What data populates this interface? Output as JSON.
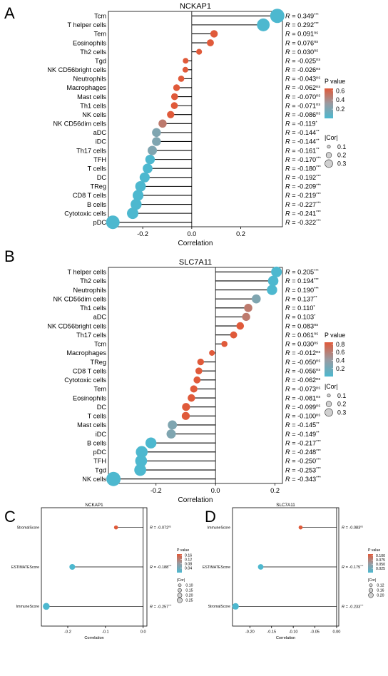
{
  "colors": {
    "high_p": "#e05a3a",
    "mid_p": "#9a9aa0",
    "low_p": "#4db8cf",
    "axis": "#000000"
  },
  "legend_labels": {
    "pvalue": "P value",
    "cor": "|Cor|"
  },
  "chart_data": [
    {
      "panel": "A",
      "type": "lollipop",
      "title": "NCKAP1",
      "xlabel": "Correlation",
      "xlim": [
        -0.34,
        0.37
      ],
      "xticks": [
        "-0.2",
        "0.0",
        "0.2"
      ],
      "xtick_values": [
        -0.2,
        0.0,
        0.2
      ],
      "categories": [
        "Tcm",
        "T helper cells",
        "Tem",
        "Eosinophils",
        "Th2 cells",
        "Tgd",
        "NK CD56bright cells",
        "Neutrophils",
        "Macrophages",
        "Mast cells",
        "Th1 cells",
        "NK cells",
        "NK CD56dim cells",
        "aDC",
        "iDC",
        "Th17 cells",
        "TFH",
        "T cells",
        "DC",
        "TReg",
        "CD8 T cells",
        "B cells",
        "Cytotoxic cells",
        "pDC"
      ],
      "values": [
        0.349,
        0.292,
        0.091,
        0.076,
        0.03,
        -0.025,
        -0.026,
        -0.043,
        -0.062,
        -0.07,
        -0.071,
        -0.086,
        -0.119,
        -0.144,
        -0.144,
        -0.161,
        -0.17,
        -0.18,
        -0.192,
        -0.209,
        -0.219,
        -0.227,
        -0.241,
        -0.322
      ],
      "r_labels": [
        "R = 0.349",
        "R = 0.292",
        "R = 0.091",
        "R = 0.076",
        "R = 0.030",
        "R = -0.025",
        "R = -0.026",
        "R = -0.043",
        "R = -0.062",
        "R = -0.070",
        "R = -0.071",
        "R = -0.086",
        "R = -0.119",
        "R = -0.144",
        "R = -0.144",
        "R = -0.161",
        "R = -0.170",
        "R = -0.180",
        "R = -0.192",
        "R = -0.209",
        "R = -0.219",
        "R = -0.227",
        "R = -0.241",
        "R = -0.322"
      ],
      "significance": [
        "***",
        "***",
        "ns",
        "ns",
        "ns",
        "ns",
        "ns",
        "ns",
        "ns",
        "ns",
        "ns",
        "ns",
        "*",
        "**",
        "**",
        "**",
        "***",
        "***",
        "***",
        "***",
        "***",
        "***",
        "***",
        "***"
      ],
      "p_legend": {
        "ticks": [
          "0.6",
          "0.4",
          "0.2"
        ],
        "tick_values": [
          0.6,
          0.4,
          0.2
        ],
        "range": [
          0,
          0.65
        ]
      },
      "cor_legend": {
        "labels": [
          "0.1",
          "0.2",
          "0.3"
        ],
        "values": [
          0.1,
          0.2,
          0.3
        ]
      }
    },
    {
      "panel": "B",
      "type": "lollipop",
      "title": "SLC7A11",
      "xlabel": "Correlation",
      "xlim": [
        -0.36,
        0.225
      ],
      "xticks": [
        "-0.2",
        "0.0",
        "0.2"
      ],
      "xtick_values": [
        -0.2,
        0.0,
        0.2
      ],
      "categories": [
        "T helper cells",
        "Th2 cells",
        "Neutrophils",
        "NK CD56dim cells",
        "Th1 cells",
        "aDC",
        "NK CD56bright cells",
        "Th17 cells",
        "Tcm",
        "Macrophages",
        "TReg",
        "CD8 T cells",
        "Cytotoxic cells",
        "Tem",
        "Eosinophils",
        "DC",
        "T cells",
        "Mast cells",
        "iDC",
        "B cells",
        "pDC",
        "TFH",
        "Tgd",
        "NK cells"
      ],
      "values": [
        0.205,
        0.194,
        0.19,
        0.137,
        0.11,
        0.103,
        0.083,
        0.061,
        0.03,
        -0.012,
        -0.05,
        -0.056,
        -0.062,
        -0.073,
        -0.081,
        -0.099,
        -0.1,
        -0.145,
        -0.149,
        -0.217,
        -0.248,
        -0.25,
        -0.253,
        -0.343
      ],
      "r_labels": [
        "R = 0.205",
        "R = 0.194",
        "R = 0.190",
        "R = 0.137",
        "R = 0.110",
        "R = 0.103",
        "R = 0.083",
        "R = 0.061",
        "R = 0.030",
        "R = -0.012",
        "R = -0.050",
        "R = -0.056",
        "R = -0.062",
        "R = -0.073",
        "R = -0.081",
        "R = -0.099",
        "R = -0.100",
        "R = -0.145",
        "R = -0.149",
        "R = -0.217",
        "R = -0.248",
        "R = -0.250",
        "R = -0.253",
        "R = -0.343"
      ],
      "significance": [
        "***",
        "***",
        "***",
        "**",
        "*",
        "*",
        "ns",
        "ns",
        "ns",
        "ns",
        "ns",
        "ns",
        "ns",
        "ns",
        "ns",
        "ns",
        "ns",
        "**",
        "**",
        "***",
        "***",
        "***",
        "***",
        "***"
      ],
      "p_legend": {
        "ticks": [
          "0.8",
          "0.6",
          "0.4",
          "0.2"
        ],
        "tick_values": [
          0.8,
          0.6,
          0.4,
          0.2
        ],
        "range": [
          0,
          0.85
        ]
      },
      "cor_legend": {
        "labels": [
          "0.1",
          "0.2",
          "0.3"
        ],
        "values": [
          0.1,
          0.2,
          0.3
        ]
      }
    },
    {
      "panel": "C",
      "type": "lollipop",
      "title": "NCKAP1",
      "xlabel": "Correlation",
      "xlim": [
        -0.27,
        0.01
      ],
      "xticks": [
        "-0.2",
        "-0.1",
        "0.0"
      ],
      "xtick_values": [
        -0.2,
        -0.1,
        0.0
      ],
      "categories": [
        "StromalScore",
        "ESTIMATEScore",
        "ImmuneScore"
      ],
      "values": [
        -0.072,
        -0.188,
        -0.257
      ],
      "r_labels": [
        "R = -0.072",
        "R = -0.188",
        "R = -0.257"
      ],
      "significance": [
        "ns",
        "***",
        "***"
      ],
      "p_legend": {
        "ticks": [
          "0.16",
          "0.12",
          "0.08",
          "0.04"
        ],
        "tick_values": [
          0.16,
          0.12,
          0.08,
          0.04
        ],
        "range": [
          0,
          0.17
        ]
      },
      "cor_legend": {
        "labels": [
          "0.10",
          "0.15",
          "0.20",
          "0.25"
        ],
        "values": [
          0.1,
          0.15,
          0.2,
          0.25
        ]
      }
    },
    {
      "panel": "D",
      "type": "lollipop",
      "title": "SLC7A11",
      "xlabel": "Correlation",
      "xlim": [
        -0.24,
        0.005
      ],
      "xticks": [
        "-0.20",
        "-0.15",
        "-0.10",
        "-0.05",
        "0.00"
      ],
      "xtick_values": [
        -0.2,
        -0.15,
        -0.1,
        -0.05,
        0.0
      ],
      "categories": [
        "ImmuneScore",
        "ESTIMATEScore",
        "StromalScore"
      ],
      "values": [
        -0.083,
        -0.175,
        -0.233
      ],
      "r_labels": [
        "R = -0.083",
        "R = -0.175",
        "R = -0.233"
      ],
      "significance": [
        "ns",
        "***",
        "***"
      ],
      "p_legend": {
        "ticks": [
          "0.100",
          "0.075",
          "0.050",
          "0.025"
        ],
        "tick_values": [
          0.1,
          0.075,
          0.05,
          0.025
        ],
        "range": [
          0,
          0.11
        ]
      },
      "cor_legend": {
        "labels": [
          "0.12",
          "0.16",
          "0.20"
        ],
        "values": [
          0.12,
          0.16,
          0.2
        ]
      }
    }
  ]
}
